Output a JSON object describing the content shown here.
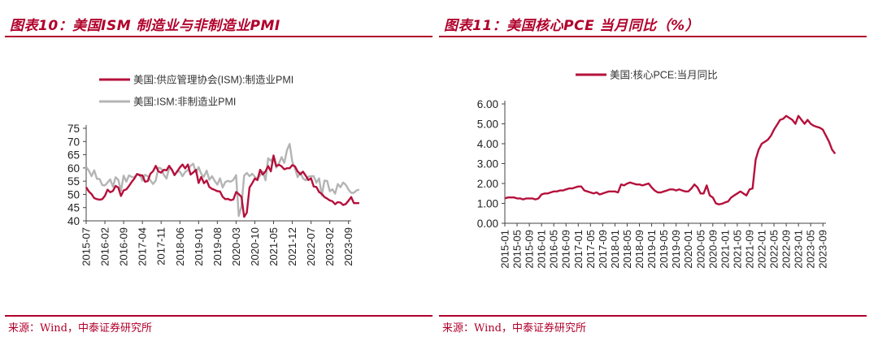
{
  "charts": [
    {
      "figure_title": "图表10：美国ISM 制造业与非制造业PMI",
      "source": "来源：Wind，中泰证券研究所"
    },
    {
      "figure_title": "图表11：美国核心PCE 当月同比（%）",
      "source": "来源：Wind，中泰证券研究所"
    }
  ],
  "chart_data": [
    {
      "type": "line",
      "title": "",
      "xlabel": "",
      "ylabel": "",
      "ylim": [
        40,
        75
      ],
      "yticks": [
        "75",
        "70",
        "65",
        "60",
        "55",
        "50",
        "45",
        "40"
      ],
      "x_ticks": [
        "2015-07",
        "2016-02",
        "2016-09",
        "2017-04",
        "2017-11",
        "2018-06",
        "2019-01",
        "2019-08",
        "2020-03",
        "2020-10",
        "2021-05",
        "2021-12",
        "2022-07",
        "2023-02",
        "2023-09"
      ],
      "x_start": "2015-07",
      "x_end": "2023-10",
      "grid": false,
      "legend_position": "top",
      "series": [
        {
          "name": "美国:供应管理协会(ISM):制造业PMI",
          "color": "#b5103c",
          "values": [
            52.7,
            51.1,
            50.1,
            48.6,
            48.2,
            48.0,
            48.2,
            49.5,
            51.8,
            50.8,
            51.3,
            53.2,
            52.6,
            49.4,
            51.5,
            51.9,
            53.2,
            54.7,
            56.0,
            57.7,
            57.2,
            57.2,
            54.8,
            55.0,
            57.8,
            58.8,
            60.8,
            58.7,
            58.2,
            59.3,
            59.1,
            60.8,
            59.3,
            57.3,
            58.7,
            60.2,
            61.3,
            59.8,
            61.3,
            57.5,
            58.3,
            59.3,
            54.3,
            56.6,
            54.2,
            55.3,
            52.8,
            52.1,
            51.7,
            51.2,
            51.1,
            49.1,
            48.2,
            48.3,
            47.8,
            48.1,
            50.9,
            50.1,
            49.1,
            41.5,
            43.1,
            52.6,
            54.2,
            56.0,
            55.4,
            59.3,
            57.5,
            58.7,
            60.7,
            58.7,
            64.7,
            60.7,
            61.2,
            60.6,
            59.5,
            59.9,
            59.9,
            61.1,
            60.6,
            58.7,
            57.6,
            58.6,
            57.1,
            55.4,
            56.1,
            53.0,
            52.8,
            50.9,
            50.2,
            49.0,
            48.4,
            47.7,
            47.4,
            46.3,
            47.1,
            46.9,
            46.0,
            46.4,
            47.6,
            49.0,
            46.7,
            46.7,
            46.7
          ]
        },
        {
          "name": "美国:ISM:非制造业PMI",
          "color": "#b4b4b4",
          "values": [
            60.3,
            59.0,
            56.9,
            59.1,
            55.9,
            55.8,
            53.5,
            53.4,
            54.5,
            55.7,
            52.9,
            56.5,
            55.5,
            51.4,
            57.1,
            54.8,
            57.2,
            56.6,
            56.5,
            57.6,
            57.6,
            55.2,
            57.4,
            56.9,
            55.3,
            53.9,
            55.3,
            60.1,
            59.8,
            57.4,
            56.0,
            59.9,
            59.5,
            57.3,
            58.8,
            58.6,
            56.9,
            58.5,
            59.1,
            60.8,
            61.6,
            58.3,
            60.3,
            57.7,
            56.7,
            59.0,
            55.5,
            56.9,
            55.1,
            53.7,
            56.1,
            52.6,
            54.7,
            55.1,
            54.8,
            55.5,
            57.3,
            41.8,
            45.4,
            57.1,
            58.1,
            56.9,
            57.8,
            56.6,
            55.9,
            57.2,
            58.7,
            55.3,
            63.7,
            62.7,
            64.0,
            60.1,
            61.7,
            64.1,
            61.9,
            66.7,
            69.1,
            62.3,
            59.9,
            56.5,
            58.3,
            56.1,
            55.3,
            56.7,
            56.9,
            56.9,
            54.4,
            56.1,
            49.6,
            55.2,
            55.1,
            51.2,
            51.9,
            50.3,
            53.9,
            52.7,
            54.5,
            53.6,
            51.8,
            50.6,
            50.6,
            51.5,
            51.8
          ]
        }
      ]
    },
    {
      "type": "line",
      "title": "",
      "xlabel": "",
      "ylabel": "",
      "ylim": [
        0,
        6
      ],
      "yticks": [
        "6.00",
        "5.00",
        "4.00",
        "3.00",
        "2.00",
        "1.00",
        "0.00"
      ],
      "x_ticks": [
        "2015-01",
        "2015-05",
        "2015-09",
        "2016-01",
        "2016-05",
        "2016-09",
        "2017-01",
        "2017-05",
        "2017-09",
        "2018-01",
        "2018-05",
        "2018-09",
        "2019-01",
        "2019-05",
        "2019-09",
        "2020-01",
        "2020-05",
        "2020-09",
        "2021-01",
        "2021-05",
        "2021-09",
        "2022-01",
        "2022-05",
        "2022-09",
        "2023-01",
        "2023-05",
        "2023-09"
      ],
      "x_start": "2015-01",
      "x_end": "2023-10",
      "grid": false,
      "legend_position": "top",
      "series": [
        {
          "name": "美国:核心PCE:当月同比",
          "color": "#b5103c",
          "values": [
            1.25,
            1.3,
            1.3,
            1.3,
            1.25,
            1.25,
            1.2,
            1.25,
            1.25,
            1.25,
            1.2,
            1.25,
            1.45,
            1.5,
            1.5,
            1.55,
            1.6,
            1.6,
            1.65,
            1.65,
            1.7,
            1.75,
            1.75,
            1.8,
            1.85,
            1.85,
            1.65,
            1.6,
            1.55,
            1.5,
            1.55,
            1.45,
            1.5,
            1.55,
            1.6,
            1.6,
            1.6,
            1.55,
            1.95,
            1.9,
            2.0,
            2.05,
            2.0,
            1.95,
            1.95,
            1.9,
            1.95,
            2.0,
            1.8,
            1.65,
            1.55,
            1.55,
            1.6,
            1.65,
            1.7,
            1.7,
            1.65,
            1.7,
            1.65,
            1.6,
            1.6,
            1.75,
            1.95,
            1.8,
            1.5,
            1.5,
            1.9,
            1.4,
            1.3,
            1.0,
            0.95,
            0.98,
            1.05,
            1.1,
            1.3,
            1.4,
            1.5,
            1.6,
            1.5,
            1.4,
            1.7,
            1.75,
            3.2,
            3.7,
            4.0,
            4.1,
            4.2,
            4.4,
            4.7,
            4.95,
            5.2,
            5.25,
            5.4,
            5.3,
            5.2,
            5.0,
            5.4,
            5.2,
            5.0,
            5.2,
            5.0,
            4.9,
            4.85,
            4.8,
            4.7,
            4.4,
            4.1,
            3.7,
            3.5
          ]
        }
      ]
    }
  ]
}
